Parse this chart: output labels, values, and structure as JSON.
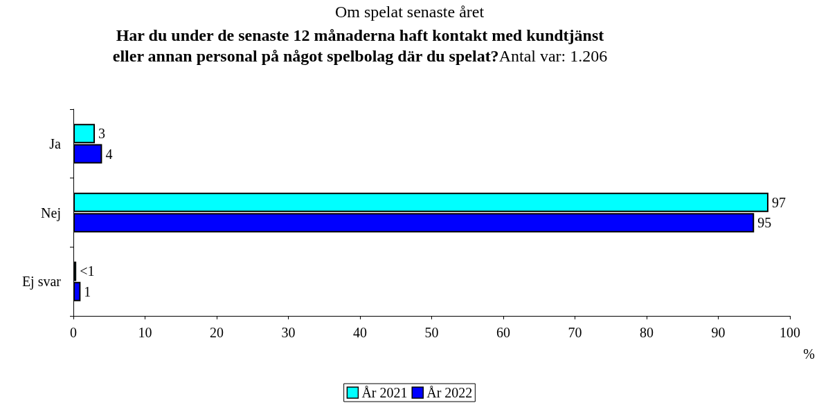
{
  "chart_data": {
    "type": "bar",
    "orientation": "horizontal",
    "title": "Om spelat senaste året",
    "subtitle": "Har du under de senaste 12 månaderna haft kontakt med kundtjänst eller annan personal på något spelbolag där du spelat?",
    "annotations": [
      "Antal var: 1.206"
    ],
    "xlabel": "%",
    "categories": [
      "Ja",
      "Nej",
      "Ej svar"
    ],
    "series": [
      {
        "name": "År 2021",
        "color": "#00ffff",
        "values": [
          3,
          97,
          0.4
        ],
        "value_labels": [
          "3",
          "97",
          "<1"
        ]
      },
      {
        "name": "År 2022",
        "color": "#0000ff",
        "values": [
          4,
          95,
          1
        ],
        "value_labels": [
          "4",
          "95",
          "1"
        ]
      }
    ],
    "xlim": [
      0,
      100
    ],
    "xticks": [
      0,
      10,
      20,
      30,
      40,
      50,
      60,
      70,
      80,
      90,
      100
    ],
    "grid": false,
    "legend": "bottom"
  }
}
